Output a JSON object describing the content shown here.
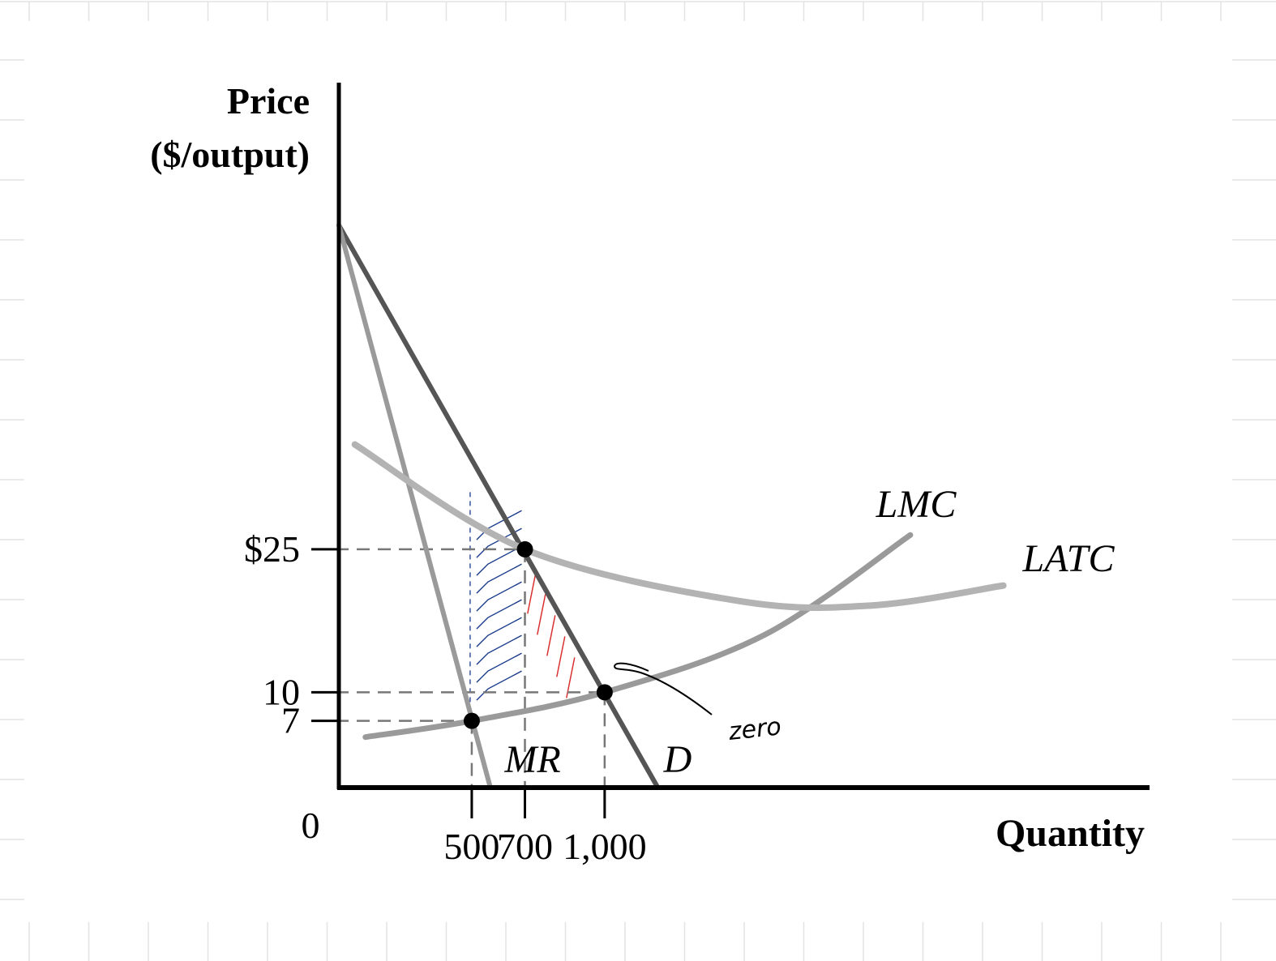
{
  "chart_data": {
    "type": "line",
    "ylabel_line1": "Price",
    "ylabel_line2": "($/output)",
    "xlabel": "Quantity",
    "origin_label": "0",
    "x_ticks": [
      {
        "value": 500,
        "label": "500"
      },
      {
        "value": 700,
        "label": "700"
      },
      {
        "value": 1000,
        "label": "1,000"
      }
    ],
    "y_ticks": [
      {
        "value": 25,
        "label": "$25"
      },
      {
        "value": 10,
        "label": "10"
      },
      {
        "value": 7,
        "label": "7"
      }
    ],
    "xlim": [
      0,
      3050
    ],
    "ylim": [
      0,
      59
    ],
    "series": [
      {
        "name": "D",
        "color": "#555555",
        "points": [
          [
            0,
            59
          ],
          [
            1200,
            0
          ]
        ]
      },
      {
        "name": "MR",
        "color": "#9a9a9a",
        "points": [
          [
            0,
            59
          ],
          [
            570,
            0
          ]
        ]
      },
      {
        "name": "LMC",
        "color": "#9a9a9a",
        "points": [
          [
            100,
            5.3
          ],
          [
            500,
            7
          ],
          [
            1000,
            10
          ],
          [
            1600,
            16
          ],
          [
            2150,
            26.5
          ]
        ]
      },
      {
        "name": "LATC",
        "color": "#b3b3b3",
        "points": [
          [
            60,
            36
          ],
          [
            700,
            25
          ],
          [
            1500,
            19.6
          ],
          [
            2000,
            19.1
          ],
          [
            2500,
            21.2
          ]
        ]
      }
    ],
    "highlighted_points": [
      {
        "x": 700,
        "y": 25
      },
      {
        "x": 1000,
        "y": 10
      },
      {
        "x": 500,
        "y": 7
      }
    ],
    "annotations": {
      "note_text": "zero",
      "hatch_blue_color": "#1a3b8c",
      "hatch_red_color": "#d93030"
    }
  }
}
